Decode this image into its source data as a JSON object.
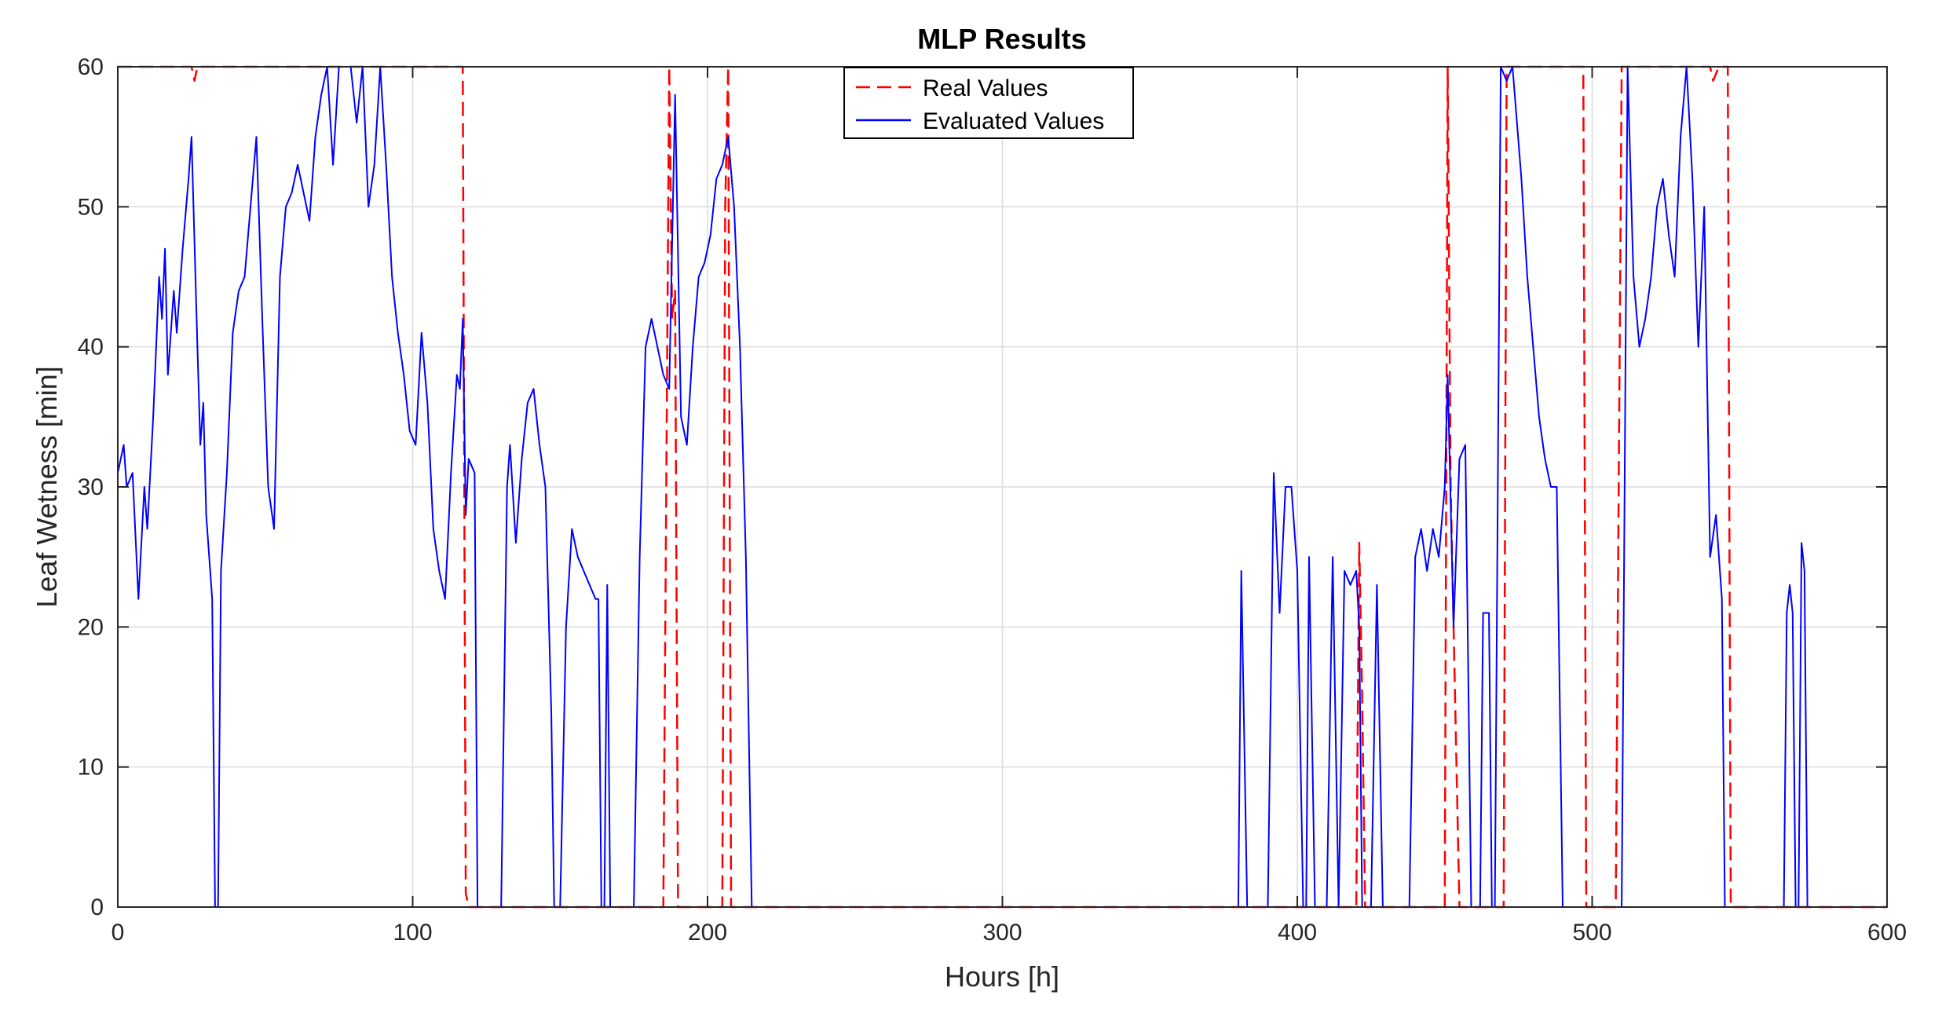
{
  "chart_data": {
    "type": "line",
    "title": "MLP Results",
    "xlabel": "Hours [h]",
    "ylabel": "Leaf Wetness [min]",
    "xlim": [
      0,
      600
    ],
    "ylim": [
      0,
      60
    ],
    "xticks": [
      0,
      100,
      200,
      300,
      400,
      500,
      600
    ],
    "yticks": [
      0,
      10,
      20,
      30,
      40,
      50,
      60
    ],
    "grid": true,
    "legend_position": "top-center",
    "series": [
      {
        "name": "Real Values",
        "color": "#ff0000",
        "style": "dashed",
        "points": [
          [
            0,
            60
          ],
          [
            25,
            60
          ],
          [
            26,
            59
          ],
          [
            27,
            60
          ],
          [
            117,
            60
          ],
          [
            118,
            1
          ],
          [
            119,
            0
          ],
          [
            185,
            0
          ],
          [
            187,
            60
          ],
          [
            188,
            42
          ],
          [
            189,
            44
          ],
          [
            190,
            0
          ],
          [
            205,
            0
          ],
          [
            206,
            50
          ],
          [
            207,
            60
          ],
          [
            208,
            0
          ],
          [
            420,
            0
          ],
          [
            421,
            26
          ],
          [
            422,
            15
          ],
          [
            423,
            0
          ],
          [
            450,
            0
          ],
          [
            451,
            60
          ],
          [
            452,
            30
          ],
          [
            455,
            0
          ],
          [
            470,
            0
          ],
          [
            471,
            60
          ],
          [
            497,
            60
          ],
          [
            498,
            0
          ],
          [
            508,
            0
          ],
          [
            510,
            60
          ],
          [
            532,
            60
          ],
          [
            533,
            60
          ],
          [
            540,
            60
          ],
          [
            541,
            59
          ],
          [
            543,
            60
          ],
          [
            546,
            60
          ],
          [
            547,
            0
          ],
          [
            600,
            0
          ]
        ]
      },
      {
        "name": "Evaluated Values",
        "color": "#0000ff",
        "style": "solid",
        "points": [
          [
            0,
            31
          ],
          [
            2,
            33
          ],
          [
            3,
            30
          ],
          [
            5,
            31
          ],
          [
            7,
            22
          ],
          [
            9,
            30
          ],
          [
            10,
            27
          ],
          [
            12,
            35
          ],
          [
            14,
            45
          ],
          [
            15,
            42
          ],
          [
            16,
            47
          ],
          [
            17,
            38
          ],
          [
            19,
            44
          ],
          [
            20,
            41
          ],
          [
            22,
            47
          ],
          [
            24,
            52
          ],
          [
            25,
            55
          ],
          [
            27,
            40
          ],
          [
            28,
            33
          ],
          [
            29,
            36
          ],
          [
            30,
            28
          ],
          [
            32,
            22
          ],
          [
            33,
            0
          ],
          [
            34,
            0
          ],
          [
            35,
            24
          ],
          [
            37,
            31
          ],
          [
            39,
            41
          ],
          [
            41,
            44
          ],
          [
            43,
            45
          ],
          [
            45,
            50
          ],
          [
            47,
            55
          ],
          [
            49,
            42
          ],
          [
            51,
            30
          ],
          [
            53,
            27
          ],
          [
            55,
            45
          ],
          [
            57,
            50
          ],
          [
            59,
            51
          ],
          [
            61,
            53
          ],
          [
            63,
            51
          ],
          [
            65,
            49
          ],
          [
            67,
            55
          ],
          [
            69,
            58
          ],
          [
            71,
            60
          ],
          [
            73,
            53
          ],
          [
            75,
            60
          ],
          [
            77,
            60
          ],
          [
            79,
            60
          ],
          [
            81,
            56
          ],
          [
            83,
            60
          ],
          [
            85,
            50
          ],
          [
            87,
            53
          ],
          [
            89,
            60
          ],
          [
            91,
            53
          ],
          [
            93,
            45
          ],
          [
            95,
            41
          ],
          [
            97,
            38
          ],
          [
            99,
            34
          ],
          [
            101,
            33
          ],
          [
            103,
            41
          ],
          [
            105,
            36
          ],
          [
            107,
            27
          ],
          [
            109,
            24
          ],
          [
            111,
            22
          ],
          [
            113,
            31
          ],
          [
            115,
            38
          ],
          [
            116,
            37
          ],
          [
            117,
            42
          ],
          [
            118,
            28
          ],
          [
            119,
            32
          ],
          [
            121,
            31
          ],
          [
            122,
            0
          ],
          [
            124,
            0
          ],
          [
            130,
            0
          ],
          [
            132,
            30
          ],
          [
            133,
            33
          ],
          [
            135,
            26
          ],
          [
            137,
            32
          ],
          [
            139,
            36
          ],
          [
            141,
            37
          ],
          [
            143,
            33
          ],
          [
            145,
            30
          ],
          [
            147,
            14
          ],
          [
            148,
            0
          ],
          [
            150,
            0
          ],
          [
            152,
            20
          ],
          [
            154,
            27
          ],
          [
            156,
            25
          ],
          [
            158,
            24
          ],
          [
            160,
            23
          ],
          [
            162,
            22
          ],
          [
            163,
            22
          ],
          [
            164,
            0
          ],
          [
            165,
            0
          ],
          [
            166,
            23
          ],
          [
            167,
            0
          ],
          [
            175,
            0
          ],
          [
            177,
            25
          ],
          [
            179,
            40
          ],
          [
            181,
            42
          ],
          [
            183,
            40
          ],
          [
            185,
            38
          ],
          [
            187,
            37
          ],
          [
            189,
            58
          ],
          [
            191,
            35
          ],
          [
            193,
            33
          ],
          [
            195,
            40
          ],
          [
            197,
            45
          ],
          [
            199,
            46
          ],
          [
            201,
            48
          ],
          [
            203,
            52
          ],
          [
            205,
            53
          ],
          [
            207,
            55
          ],
          [
            209,
            50
          ],
          [
            211,
            40
          ],
          [
            213,
            25
          ],
          [
            215,
            0
          ],
          [
            216,
            0
          ],
          [
            380,
            0
          ],
          [
            381,
            24
          ],
          [
            383,
            0
          ],
          [
            390,
            0
          ],
          [
            392,
            31
          ],
          [
            394,
            21
          ],
          [
            396,
            30
          ],
          [
            398,
            30
          ],
          [
            400,
            24
          ],
          [
            402,
            0
          ],
          [
            403,
            0
          ],
          [
            404,
            25
          ],
          [
            406,
            0
          ],
          [
            410,
            0
          ],
          [
            412,
            25
          ],
          [
            414,
            0
          ],
          [
            416,
            24
          ],
          [
            418,
            23
          ],
          [
            420,
            24
          ],
          [
            421,
            20
          ],
          [
            422,
            0
          ],
          [
            425,
            0
          ],
          [
            427,
            23
          ],
          [
            429,
            0
          ],
          [
            438,
            0
          ],
          [
            440,
            25
          ],
          [
            442,
            27
          ],
          [
            444,
            24
          ],
          [
            446,
            27
          ],
          [
            448,
            25
          ],
          [
            450,
            30
          ],
          [
            451,
            38
          ],
          [
            453,
            20
          ],
          [
            455,
            32
          ],
          [
            457,
            33
          ],
          [
            459,
            0
          ],
          [
            462,
            0
          ],
          [
            463,
            21
          ],
          [
            465,
            21
          ],
          [
            466,
            0
          ],
          [
            467,
            0
          ],
          [
            469,
            60
          ],
          [
            471,
            59
          ],
          [
            473,
            60
          ],
          [
            476,
            52
          ],
          [
            478,
            45
          ],
          [
            480,
            40
          ],
          [
            482,
            35
          ],
          [
            484,
            32
          ],
          [
            486,
            30
          ],
          [
            488,
            30
          ],
          [
            490,
            0
          ],
          [
            510,
            0
          ],
          [
            512,
            60
          ],
          [
            514,
            45
          ],
          [
            516,
            40
          ],
          [
            518,
            42
          ],
          [
            520,
            45
          ],
          [
            522,
            50
          ],
          [
            524,
            52
          ],
          [
            526,
            48
          ],
          [
            528,
            45
          ],
          [
            530,
            55
          ],
          [
            532,
            60
          ],
          [
            534,
            52
          ],
          [
            536,
            40
          ],
          [
            538,
            50
          ],
          [
            540,
            25
          ],
          [
            542,
            28
          ],
          [
            544,
            22
          ],
          [
            545,
            0
          ],
          [
            565,
            0
          ],
          [
            566,
            21
          ],
          [
            567,
            23
          ],
          [
            568,
            21
          ],
          [
            569,
            0
          ],
          [
            570,
            0
          ],
          [
            571,
            26
          ],
          [
            572,
            24
          ],
          [
            573,
            0
          ],
          [
            600,
            0
          ]
        ]
      }
    ]
  }
}
